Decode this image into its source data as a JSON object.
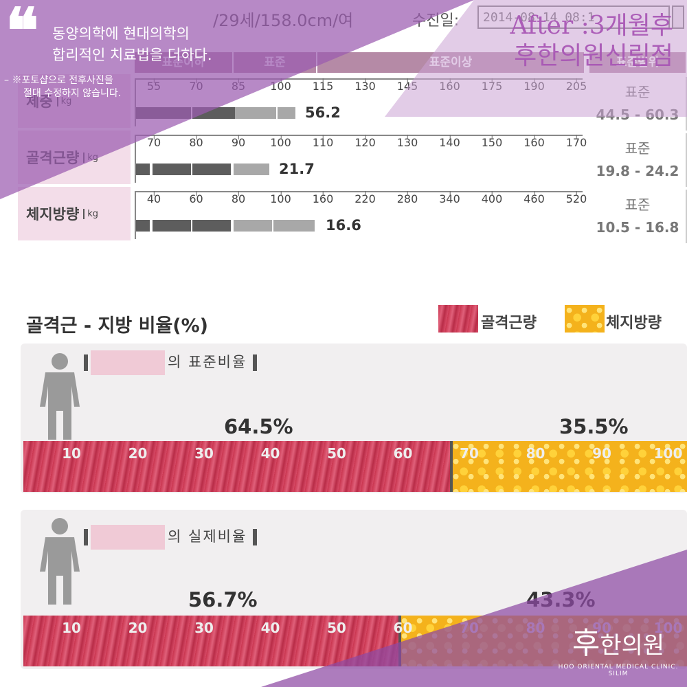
{
  "header": {
    "patient_info": "/29세/158.0cm/여",
    "exam_label": "수진일:",
    "exam_value": "2014-08-14 08:1"
  },
  "columns": {
    "standard_below": "표준이하",
    "standard": "표준",
    "standard_above": "표준이상",
    "range": "표준범위"
  },
  "rows": [
    {
      "label": "체중",
      "unit": "kg",
      "ticks": [
        "55",
        "70",
        "85",
        "100",
        "115",
        "130",
        "145",
        "160",
        "175",
        "190",
        "205"
      ],
      "value": "56.2",
      "range_label": "표준",
      "range": "44.5 - 60.3"
    },
    {
      "label": "골격근량",
      "unit": "kg",
      "ticks": [
        "70",
        "80",
        "90",
        "100",
        "110",
        "120",
        "130",
        "140",
        "150",
        "160",
        "170"
      ],
      "value": "21.7",
      "range_label": "표준",
      "range": "19.8 - 24.2"
    },
    {
      "label": "체지방량",
      "unit": "kg",
      "ticks": [
        "40",
        "60",
        "80",
        "100",
        "160",
        "220",
        "280",
        "340",
        "400",
        "460",
        "520"
      ],
      "value": "16.6",
      "range_label": "표준",
      "range": "10.5 - 16.8"
    }
  ],
  "ratio": {
    "title": "골격근 - 지방 비율(%)",
    "legend_muscle": "골격근량",
    "legend_fat": "체지방량",
    "ticks": [
      "10",
      "20",
      "30",
      "40",
      "50",
      "60",
      "70",
      "80",
      "90",
      "100"
    ],
    "standard": {
      "label_suffix": "의 표준비율",
      "muscle_pct": "64.5%",
      "fat_pct": "35.5%",
      "muscle_fraction": 0.645
    },
    "actual": {
      "label_suffix": "의 실제비율",
      "muscle_pct": "56.7%",
      "fat_pct": "43.3%",
      "muscle_fraction": 0.567
    }
  },
  "overlay": {
    "quote": "❝",
    "slogan_line1": "동양의학에 현대의학의",
    "slogan_line2": "합리적인 치료법을 더하다.",
    "notice_line1": "– ※포토샵으로 전후사진을",
    "notice_line2": "절대 수정하지 않습니다.",
    "after_line1": "After :3개월후",
    "after_line2": "후한의원신림점",
    "logo_main": "후",
    "logo_sub": "한의원",
    "logo_en": "HOO ORIENTAL MEDICAL CLINIC. SILIM",
    "purple": "#8e4aa3",
    "accent": "#a855b5"
  }
}
